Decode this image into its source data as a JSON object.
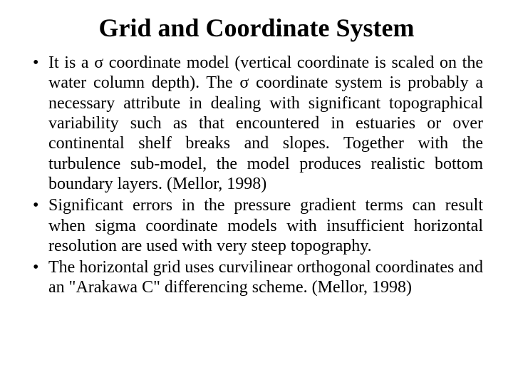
{
  "slide": {
    "title": "Grid and Coordinate System",
    "title_fontsize": 36,
    "body_fontsize": 24,
    "line_height": 1.18,
    "text_color": "#000000",
    "background_color": "#ffffff",
    "bullets": [
      "It is a σ coordinate model (vertical coordinate is scaled on the water column depth). The σ coordinate system is probably a necessary attribute in dealing with significant topographical variability such as that encountered in estuaries or over continental shelf breaks and slopes. Together with the turbulence sub-model, the model produces realistic bottom boundary layers.  (Mellor, 1998)",
      "Significant errors in the pressure gradient terms can result when sigma coordinate models with insufficient horizontal resolution are used with very steep topography.",
      "The horizontal grid uses curvilinear orthogonal coordinates and an \"Arakawa C\" differencing scheme. (Mellor, 1998)"
    ]
  }
}
